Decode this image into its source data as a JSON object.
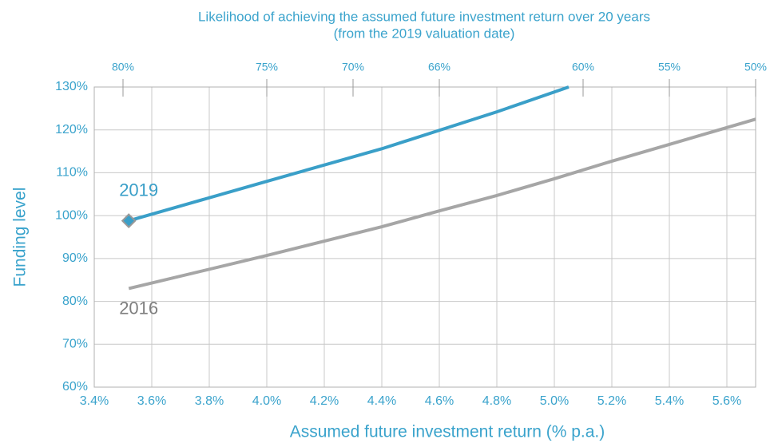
{
  "chart_data": {
    "type": "line",
    "title": "Likelihood of achieving the assumed future investment return over 20 years",
    "subtitle": "(from the 2019 valuation date)",
    "x_label": "Assumed future investment return (% p.a.)",
    "y_label": "Funding level",
    "xlim": [
      3.4,
      5.7
    ],
    "xticks": [
      {
        "value": 3.4,
        "label": "3.4%"
      },
      {
        "value": 3.6,
        "label": "3.6%"
      },
      {
        "value": 3.8,
        "label": "3.8%"
      },
      {
        "value": 4.0,
        "label": "4.0%"
      },
      {
        "value": 4.2,
        "label": "4.2%"
      },
      {
        "value": 4.4,
        "label": "4.4%"
      },
      {
        "value": 4.6,
        "label": "4.6%"
      },
      {
        "value": 4.8,
        "label": "4.8%"
      },
      {
        "value": 5.0,
        "label": "5.0%"
      },
      {
        "value": 5.2,
        "label": "5.2%"
      },
      {
        "value": 5.4,
        "label": "5.4%"
      },
      {
        "value": 5.6,
        "label": "5.6%"
      }
    ],
    "x2ticks": [
      {
        "value": 3.5,
        "label": "80%"
      },
      {
        "value": 4.0,
        "label": "75%"
      },
      {
        "value": 4.3,
        "label": "70%"
      },
      {
        "value": 4.6,
        "label": "66%"
      },
      {
        "value": 5.1,
        "label": "60%"
      },
      {
        "value": 5.4,
        "label": "55%"
      },
      {
        "value": 5.7,
        "label": "50%"
      }
    ],
    "ylim": [
      60,
      130
    ],
    "yticks": [
      {
        "value": 60,
        "label": "60%"
      },
      {
        "value": 70,
        "label": "70%"
      },
      {
        "value": 80,
        "label": "80%"
      },
      {
        "value": 90,
        "label": "90%"
      },
      {
        "value": 100,
        "label": "100%"
      },
      {
        "value": 110,
        "label": "110%"
      },
      {
        "value": 120,
        "label": "120%"
      },
      {
        "value": 130,
        "label": "130%"
      }
    ],
    "grid": true,
    "series": [
      {
        "name": "2019",
        "color": "#3a9fc8",
        "marker": "diamond",
        "x": [
          3.52,
          4.0,
          4.4,
          4.6,
          4.8,
          5.05
        ],
        "values": [
          98.8,
          108,
          115.6,
          119.9,
          124.2,
          130
        ]
      },
      {
        "name": "2016",
        "color": "#a6a6a6",
        "x": [
          3.52,
          4.0,
          4.4,
          4.6,
          4.8,
          5.0,
          5.2,
          5.4,
          5.7
        ],
        "values": [
          83,
          90.7,
          97.4,
          101.1,
          104.7,
          108.6,
          112.7,
          116.6,
          122.5
        ]
      }
    ]
  }
}
